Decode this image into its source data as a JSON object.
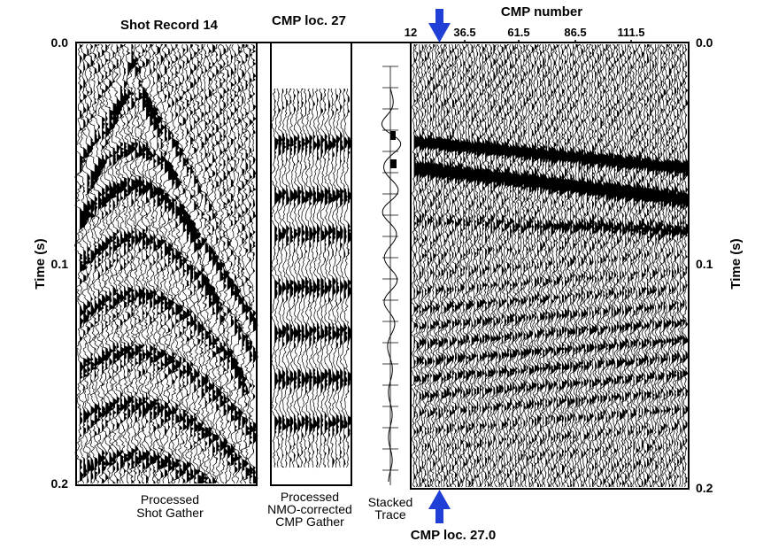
{
  "titles": {
    "shot_record": "Shot Record 14",
    "cmp_loc_top": "CMP loc. 27",
    "cmp_number": "CMP number",
    "cmp_loc_bottom": "CMP loc. 27.0"
  },
  "axes": {
    "ylabel_left": "Time (s)",
    "ylabel_right": "Time (s)",
    "y_ticks_left": [
      "0.0",
      "0.1",
      "0.2"
    ],
    "y_ticks_right": [
      "0.0",
      "0.1",
      "0.2"
    ],
    "x_ticks": [
      "12",
      "36.5",
      "61.5",
      "86.5",
      "111.5"
    ]
  },
  "captions": {
    "processed_shot_gather": [
      "Processed",
      "Shot Gather"
    ],
    "processed_nmo_gather": [
      "Processed",
      "NMO-corrected",
      "CMP Gather"
    ],
    "stacked_trace": [
      "Stacked",
      "Trace"
    ]
  },
  "colors": {
    "arrow": "#1f3fd6",
    "ink": "#000000",
    "background": "#ffffff"
  }
}
